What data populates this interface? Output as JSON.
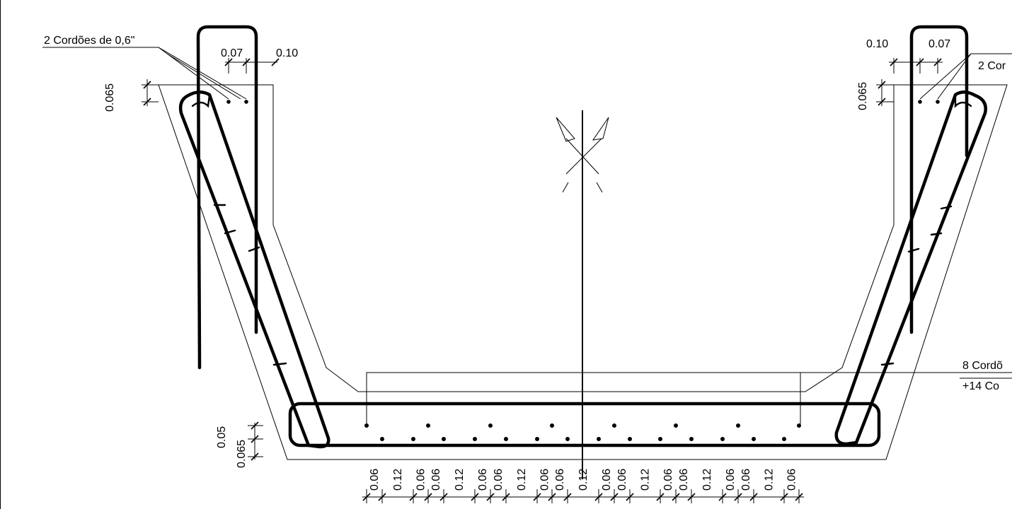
{
  "labels": {
    "left_top_callout": "2 Cordões de 0,6\"",
    "right_top_callout": "2 Cor",
    "bottom_callout_1": "8 Cordõ",
    "bottom_callout_2": "+14 Co"
  },
  "left_top_dims": {
    "strand_spacing": "0.07",
    "edge_distance": "0.10",
    "cover_height": "0.065"
  },
  "right_top_dims": {
    "edge_distance": "0.10",
    "strand_spacing": "0.07",
    "cover_height": "0.065"
  },
  "bottom_vertical_dims": {
    "upper_layer": "0.05",
    "lower_layer": "0.065"
  },
  "bottom_horizontal_dims": [
    "0.06",
    "0.12",
    "0.06",
    "0.06",
    "0.12",
    "0.06",
    "0.06",
    "0.12",
    "0.06",
    "0.06",
    "0.12",
    "0.06",
    "0.06",
    "0.12",
    "0.06",
    "0.06",
    "0.12",
    "0.06",
    "0.06",
    "0.12",
    "0.06"
  ]
}
